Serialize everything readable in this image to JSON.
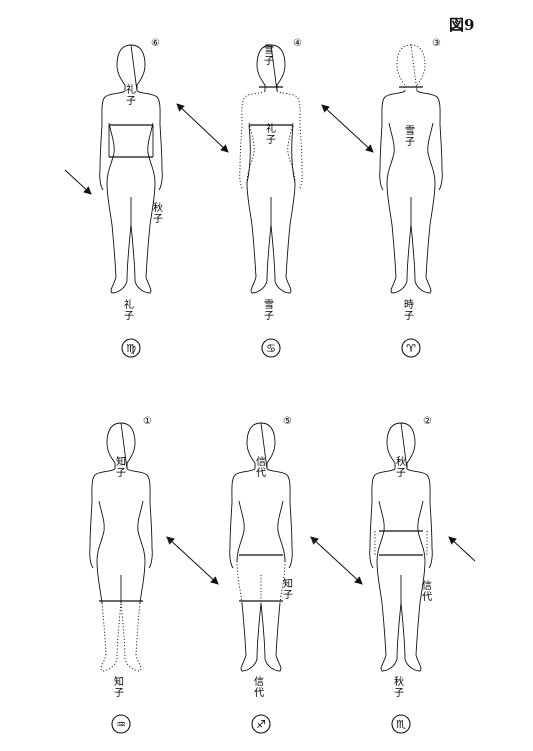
{
  "figure_title": "図9",
  "figures": [
    {
      "id": "f6",
      "number": "⑥",
      "body_label": "礼子",
      "leg_label": "秋子",
      "bottom_label": "礼子",
      "sign": "♍",
      "sign_name": "virgo-icon",
      "dotted_part": "none"
    },
    {
      "id": "f4",
      "number": "④",
      "head_label": "雪子",
      "body_label": "礼子",
      "bottom_label": "雪子",
      "sign": "♋",
      "sign_name": "cancer-icon",
      "dotted_part": "upper"
    },
    {
      "id": "f3",
      "number": "③",
      "body_label": "雪子",
      "bottom_label": "時子",
      "sign": "♈",
      "sign_name": "aries-icon",
      "dotted_part": "head"
    },
    {
      "id": "f1",
      "number": "①",
      "body_label": "知子",
      "bottom_label": "知子",
      "sign": "♒",
      "sign_name": "aquarius-icon",
      "dotted_part": "lower-legs"
    },
    {
      "id": "f5",
      "number": "⑤",
      "body_label": "信代",
      "leg_label": "知子",
      "bottom_label": "信代",
      "sign": "♐",
      "sign_name": "sagittarius-icon",
      "dotted_part": "legs"
    },
    {
      "id": "f2",
      "number": "②",
      "body_label": "秋子",
      "leg_label": "信代",
      "bottom_label": "秋子",
      "sign": "♏",
      "sign_name": "scorpio-icon",
      "dotted_part": "hips"
    }
  ]
}
